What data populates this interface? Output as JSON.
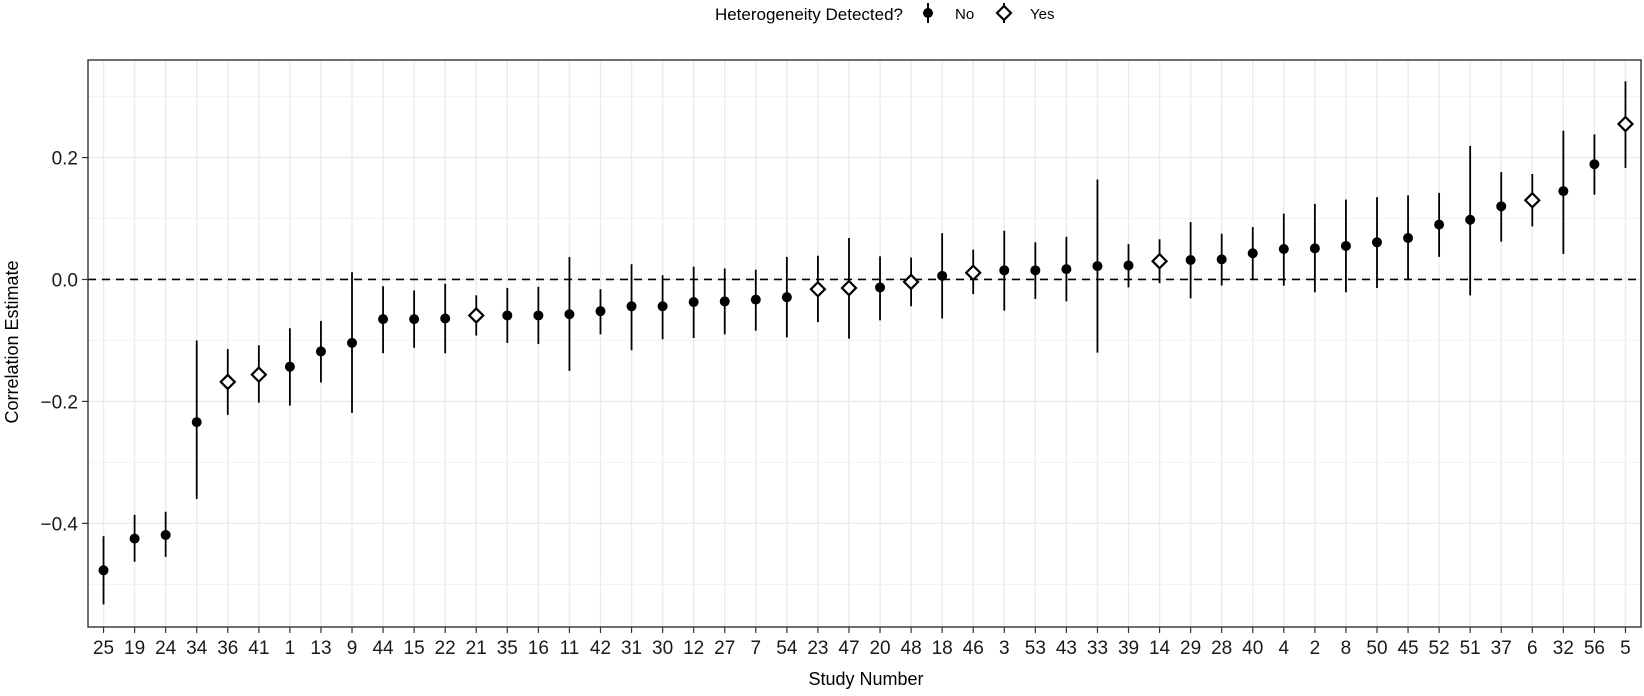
{
  "chart_data": {
    "type": "scatter",
    "title": "",
    "xlabel": "Study Number",
    "ylabel": "Correlation Estimate",
    "ylim": [
      -0.57,
      0.36
    ],
    "yticks": [
      -0.4,
      -0.2,
      0.0,
      0.2
    ],
    "ytick_labels": [
      "−0.4",
      "−0.2",
      "0.0",
      "0.2"
    ],
    "grid": true,
    "reference_line": 0.0,
    "legend": {
      "title": "Heterogeneity Detected?",
      "placement": "top",
      "entries": [
        {
          "label": "No",
          "marker": "circle"
        },
        {
          "label": "Yes",
          "marker": "diamond"
        }
      ]
    },
    "points": [
      {
        "study": "25",
        "estimate": -0.477,
        "lower": -0.533,
        "upper": -0.421,
        "heterogeneity": "No"
      },
      {
        "study": "19",
        "estimate": -0.425,
        "lower": -0.463,
        "upper": -0.386,
        "heterogeneity": "No"
      },
      {
        "study": "24",
        "estimate": -0.419,
        "lower": -0.455,
        "upper": -0.381,
        "heterogeneity": "No"
      },
      {
        "study": "34",
        "estimate": -0.234,
        "lower": -0.36,
        "upper": -0.1,
        "heterogeneity": "No"
      },
      {
        "study": "36",
        "estimate": -0.168,
        "lower": -0.222,
        "upper": -0.114,
        "heterogeneity": "Yes"
      },
      {
        "study": "41",
        "estimate": -0.156,
        "lower": -0.202,
        "upper": -0.108,
        "heterogeneity": "Yes"
      },
      {
        "study": "1",
        "estimate": -0.143,
        "lower": -0.207,
        "upper": -0.08,
        "heterogeneity": "No"
      },
      {
        "study": "13",
        "estimate": -0.118,
        "lower": -0.169,
        "upper": -0.068,
        "heterogeneity": "No"
      },
      {
        "study": "9",
        "estimate": -0.104,
        "lower": -0.219,
        "upper": 0.012,
        "heterogeneity": "No"
      },
      {
        "study": "44",
        "estimate": -0.065,
        "lower": -0.121,
        "upper": -0.011,
        "heterogeneity": "No"
      },
      {
        "study": "15",
        "estimate": -0.065,
        "lower": -0.112,
        "upper": -0.018,
        "heterogeneity": "No"
      },
      {
        "study": "22",
        "estimate": -0.064,
        "lower": -0.121,
        "upper": -0.007,
        "heterogeneity": "No"
      },
      {
        "study": "21",
        "estimate": -0.059,
        "lower": -0.092,
        "upper": -0.026,
        "heterogeneity": "Yes"
      },
      {
        "study": "35",
        "estimate": -0.059,
        "lower": -0.104,
        "upper": -0.014,
        "heterogeneity": "No"
      },
      {
        "study": "16",
        "estimate": -0.059,
        "lower": -0.106,
        "upper": -0.012,
        "heterogeneity": "No"
      },
      {
        "study": "11",
        "estimate": -0.057,
        "lower": -0.15,
        "upper": 0.037,
        "heterogeneity": "No"
      },
      {
        "study": "42",
        "estimate": -0.052,
        "lower": -0.09,
        "upper": -0.016,
        "heterogeneity": "No"
      },
      {
        "study": "31",
        "estimate": -0.044,
        "lower": -0.116,
        "upper": 0.025,
        "heterogeneity": "No"
      },
      {
        "study": "30",
        "estimate": -0.044,
        "lower": -0.098,
        "upper": 0.007,
        "heterogeneity": "No"
      },
      {
        "study": "12",
        "estimate": -0.037,
        "lower": -0.096,
        "upper": 0.021,
        "heterogeneity": "No"
      },
      {
        "study": "27",
        "estimate": -0.036,
        "lower": -0.09,
        "upper": 0.018,
        "heterogeneity": "No"
      },
      {
        "study": "7",
        "estimate": -0.033,
        "lower": -0.084,
        "upper": 0.016,
        "heterogeneity": "No"
      },
      {
        "study": "54",
        "estimate": -0.029,
        "lower": -0.095,
        "upper": 0.037,
        "heterogeneity": "No"
      },
      {
        "study": "23",
        "estimate": -0.016,
        "lower": -0.07,
        "upper": 0.039,
        "heterogeneity": "Yes"
      },
      {
        "study": "47",
        "estimate": -0.014,
        "lower": -0.097,
        "upper": 0.068,
        "heterogeneity": "Yes"
      },
      {
        "study": "20",
        "estimate": -0.013,
        "lower": -0.067,
        "upper": 0.038,
        "heterogeneity": "No"
      },
      {
        "study": "48",
        "estimate": -0.004,
        "lower": -0.044,
        "upper": 0.036,
        "heterogeneity": "Yes"
      },
      {
        "study": "18",
        "estimate": 0.006,
        "lower": -0.064,
        "upper": 0.076,
        "heterogeneity": "No"
      },
      {
        "study": "46",
        "estimate": 0.011,
        "lower": -0.024,
        "upper": 0.049,
        "heterogeneity": "Yes"
      },
      {
        "study": "3",
        "estimate": 0.015,
        "lower": -0.051,
        "upper": 0.08,
        "heterogeneity": "No"
      },
      {
        "study": "53",
        "estimate": 0.015,
        "lower": -0.032,
        "upper": 0.061,
        "heterogeneity": "No"
      },
      {
        "study": "43",
        "estimate": 0.017,
        "lower": -0.036,
        "upper": 0.07,
        "heterogeneity": "No"
      },
      {
        "study": "33",
        "estimate": 0.022,
        "lower": -0.12,
        "upper": 0.164,
        "heterogeneity": "No"
      },
      {
        "study": "39",
        "estimate": 0.023,
        "lower": -0.013,
        "upper": 0.058,
        "heterogeneity": "No"
      },
      {
        "study": "14",
        "estimate": 0.03,
        "lower": -0.006,
        "upper": 0.066,
        "heterogeneity": "Yes"
      },
      {
        "study": "29",
        "estimate": 0.032,
        "lower": -0.031,
        "upper": 0.094,
        "heterogeneity": "No"
      },
      {
        "study": "28",
        "estimate": 0.033,
        "lower": -0.01,
        "upper": 0.075,
        "heterogeneity": "No"
      },
      {
        "study": "40",
        "estimate": 0.043,
        "lower": 0.0,
        "upper": 0.086,
        "heterogeneity": "No"
      },
      {
        "study": "4",
        "estimate": 0.05,
        "lower": -0.01,
        "upper": 0.108,
        "heterogeneity": "No"
      },
      {
        "study": "2",
        "estimate": 0.051,
        "lower": -0.021,
        "upper": 0.124,
        "heterogeneity": "No"
      },
      {
        "study": "8",
        "estimate": 0.055,
        "lower": -0.021,
        "upper": 0.131,
        "heterogeneity": "No"
      },
      {
        "study": "50",
        "estimate": 0.061,
        "lower": -0.014,
        "upper": 0.135,
        "heterogeneity": "No"
      },
      {
        "study": "45",
        "estimate": 0.068,
        "lower": -0.001,
        "upper": 0.138,
        "heterogeneity": "No"
      },
      {
        "study": "52",
        "estimate": 0.09,
        "lower": 0.037,
        "upper": 0.142,
        "heterogeneity": "No"
      },
      {
        "study": "51",
        "estimate": 0.098,
        "lower": -0.026,
        "upper": 0.219,
        "heterogeneity": "No"
      },
      {
        "study": "37",
        "estimate": 0.12,
        "lower": 0.062,
        "upper": 0.176,
        "heterogeneity": "No"
      },
      {
        "study": "6",
        "estimate": 0.13,
        "lower": 0.087,
        "upper": 0.173,
        "heterogeneity": "Yes"
      },
      {
        "study": "32",
        "estimate": 0.145,
        "lower": 0.042,
        "upper": 0.244,
        "heterogeneity": "No"
      },
      {
        "study": "56",
        "estimate": 0.189,
        "lower": 0.139,
        "upper": 0.238,
        "heterogeneity": "No"
      },
      {
        "study": "5",
        "estimate": 0.255,
        "lower": 0.183,
        "upper": 0.325,
        "heterogeneity": "Yes"
      }
    ]
  }
}
